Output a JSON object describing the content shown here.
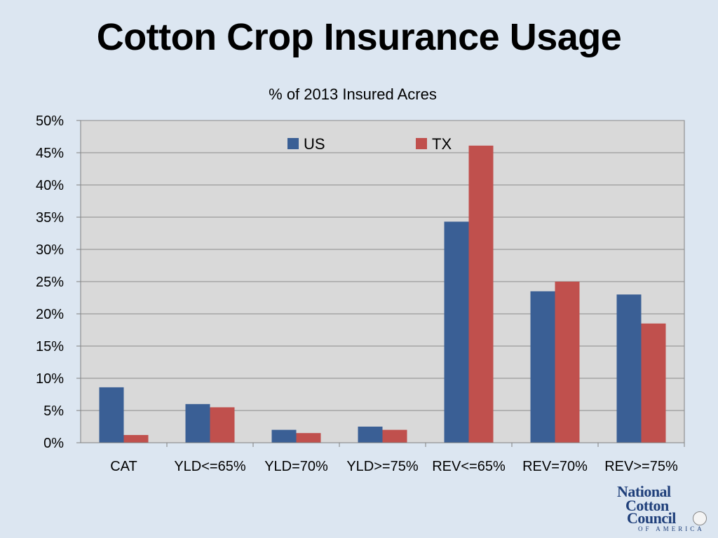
{
  "slide": {
    "title": "Cotton Crop Insurance Usage"
  },
  "logo": {
    "line1": "National",
    "line2": "Cotton",
    "line3": "Council",
    "subline": "OF AMERICA",
    "icon": "cotton-seal-icon"
  },
  "chart_data": {
    "type": "bar",
    "title": "% of 2013 Insured Acres",
    "xlabel": "",
    "ylabel": "",
    "categories": [
      "CAT",
      "YLD<=65%",
      "YLD=70%",
      "YLD>=75%",
      "REV<=65%",
      "REV=70%",
      "REV>=75%"
    ],
    "series": [
      {
        "name": "US",
        "color": "#3a5f95",
        "values": [
          8.6,
          6.0,
          2.0,
          2.5,
          34.3,
          23.5,
          23.0
        ]
      },
      {
        "name": "TX",
        "color": "#c0504d",
        "values": [
          1.2,
          5.5,
          1.5,
          2.0,
          46.1,
          25.0,
          18.5
        ]
      }
    ],
    "ylim": [
      0,
      50
    ],
    "ytick_step": 5,
    "ytick_format": "percent",
    "grid": true,
    "legend_position": "top-center",
    "plot_background": "#d9d9d9"
  }
}
